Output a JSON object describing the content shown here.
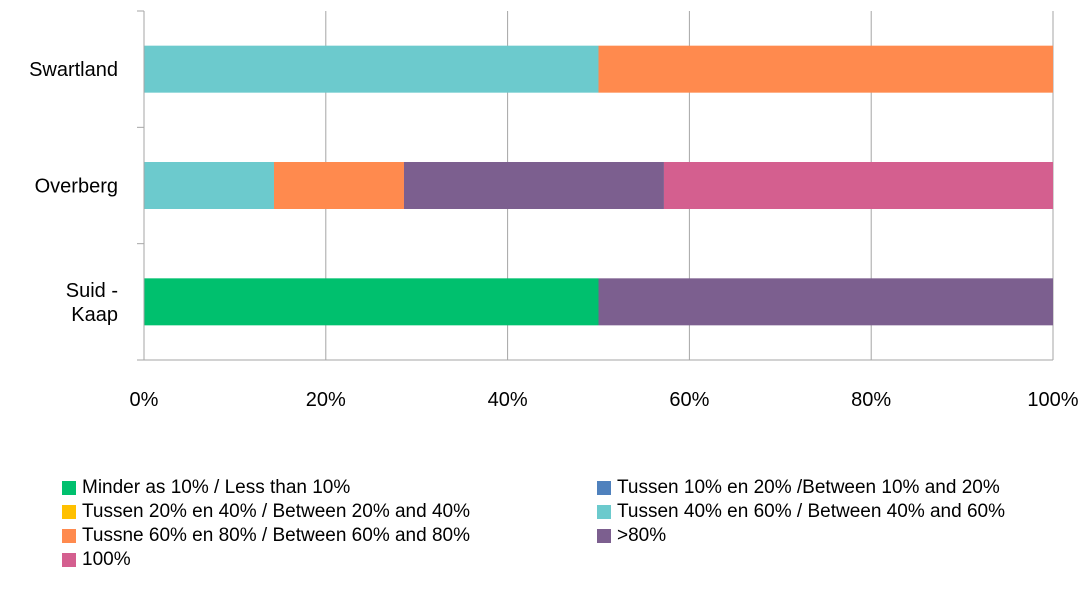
{
  "chart_data": {
    "type": "bar",
    "orientation": "horizontal",
    "stacked": "percent",
    "categories": [
      "Swartland",
      "Overberg",
      "Suid - Kaap"
    ],
    "category_label_lines": [
      [
        "Swartland"
      ],
      [
        "Overberg"
      ],
      [
        "Suid -",
        "Kaap"
      ]
    ],
    "series": [
      {
        "name": "Minder as 10% / Less than 10%",
        "color": "#00C06E",
        "values": [
          0,
          0,
          50
        ]
      },
      {
        "name": "Tussen 10% en  20% /Between 10% and 20%",
        "color": "#4F81BD",
        "values": [
          0,
          0,
          0
        ]
      },
      {
        "name": "Tussen 20% en 40% / Between 20% and 40%",
        "color": "#FFC000",
        "values": [
          0,
          0,
          0
        ]
      },
      {
        "name": "Tussen 40% en 60% / Between 40% and 60%",
        "color": "#6CCACD",
        "values": [
          50,
          14.3,
          0
        ]
      },
      {
        "name": "Tussne 60% en 80% / Between 60% and 80%",
        "color": "#FF8A4E",
        "values": [
          50,
          14.3,
          0
        ]
      },
      {
        "name": ">80%",
        "color": "#7C5F8F",
        "values": [
          0,
          28.6,
          50
        ]
      },
      {
        "name": "100%",
        "color": "#D45F8F",
        "values": [
          0,
          42.8,
          0
        ]
      }
    ],
    "xlim": [
      0,
      100
    ],
    "x_ticks": [
      0,
      20,
      40,
      60,
      80,
      100
    ],
    "x_tick_labels": [
      "0%",
      "20%",
      "40%",
      "60%",
      "80%",
      "100%"
    ],
    "grid": "vertical",
    "legend_position": "bottom",
    "title": "",
    "xlabel": "",
    "ylabel": ""
  }
}
